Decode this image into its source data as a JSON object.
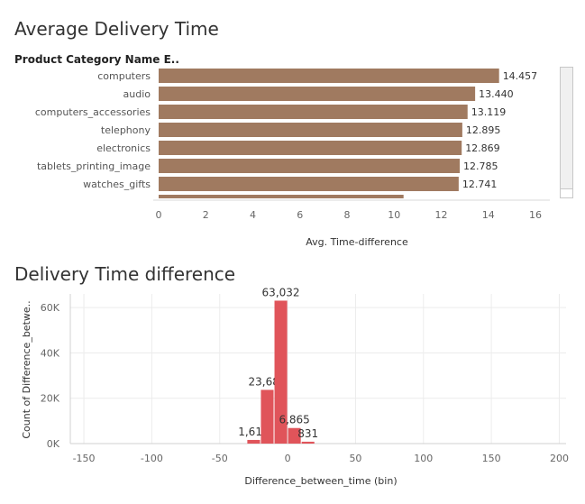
{
  "chart_data": [
    {
      "type": "bar",
      "orientation": "horizontal",
      "title": "Average Delivery Time",
      "category_header": "Product Category Name E..",
      "categories": [
        "computers",
        "audio",
        "computers_accessories",
        "telephony",
        "electronics",
        "tablets_printing_image",
        "watches_gifts"
      ],
      "values": [
        14.457,
        13.44,
        13.119,
        12.895,
        12.869,
        12.785,
        12.741
      ],
      "value_labels": [
        "14.457",
        "13.440",
        "13.119",
        "12.895",
        "12.869",
        "12.785",
        "12.741"
      ],
      "partial_next_value": 10.4,
      "xlabel": "Avg. Time-difference",
      "xticks": [
        "0",
        "2",
        "4",
        "6",
        "8",
        "10",
        "12",
        "14",
        "16"
      ],
      "xlim": [
        0,
        16
      ],
      "bar_color": "#a07a60",
      "grid": false
    },
    {
      "type": "bar",
      "subtype": "histogram",
      "title": "Delivery Time difference",
      "bins": [
        -30,
        -20,
        -10,
        0,
        10
      ],
      "bin_width": 10,
      "values": [
        1612,
        23689,
        63032,
        6865,
        831
      ],
      "value_labels": [
        "1,612",
        "23,689",
        "63,032",
        "6,865",
        "831"
      ],
      "xlabel": "Difference_between_time (bin)",
      "ylabel": "Count of Difference_betwe..",
      "xticks": [
        "-150",
        "-100",
        "-50",
        "0",
        "50",
        "100",
        "150",
        "200"
      ],
      "yticks": [
        "0K",
        "20K",
        "40K",
        "60K"
      ],
      "xlim": [
        -160,
        205
      ],
      "ylim": [
        0,
        66000
      ],
      "bar_color": "#e0545a",
      "grid": true
    }
  ]
}
